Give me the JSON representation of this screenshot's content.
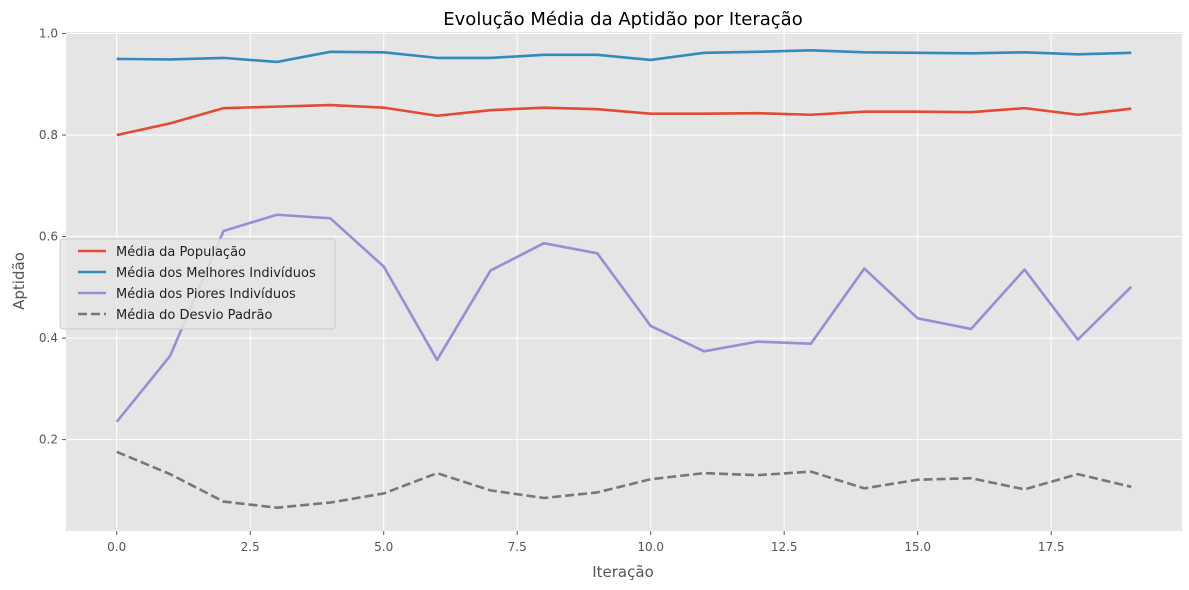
{
  "chart_data": {
    "type": "line",
    "title": "Evolução Média da Aptidão por Iteração",
    "xlabel": "Iteração",
    "ylabel": "Aptidão",
    "xlim": [
      -0.95,
      19.95
    ],
    "ylim": [
      0.02,
      1.003
    ],
    "xticks": [
      0.0,
      2.5,
      5.0,
      7.5,
      10.0,
      12.5,
      15.0,
      17.5
    ],
    "xtick_labels": [
      "0.0",
      "2.5",
      "5.0",
      "7.5",
      "10.0",
      "12.5",
      "15.0",
      "17.5"
    ],
    "yticks": [
      0.2,
      0.4,
      0.6,
      0.8,
      1.0
    ],
    "ytick_labels": [
      "0.2",
      "0.4",
      "0.6",
      "0.8",
      "1.0"
    ],
    "grid": true,
    "legend_position": "center-left",
    "background": "#e5e5e5",
    "x": [
      0,
      1,
      2,
      3,
      4,
      5,
      6,
      7,
      8,
      9,
      10,
      11,
      12,
      13,
      14,
      15,
      16,
      17,
      18,
      19
    ],
    "series": [
      {
        "name": "Média da População",
        "color": "#e24a33",
        "dash": "solid",
        "values": [
          0.8,
          0.823,
          0.853,
          0.856,
          0.859,
          0.854,
          0.838,
          0.849,
          0.854,
          0.851,
          0.842,
          0.842,
          0.843,
          0.84,
          0.846,
          0.846,
          0.845,
          0.853,
          0.84,
          0.852
        ]
      },
      {
        "name": "Média dos Melhores Indivíduos",
        "color": "#348abd",
        "dash": "solid",
        "values": [
          0.95,
          0.949,
          0.952,
          0.944,
          0.964,
          0.963,
          0.952,
          0.952,
          0.958,
          0.958,
          0.948,
          0.962,
          0.964,
          0.967,
          0.963,
          0.962,
          0.961,
          0.963,
          0.959,
          0.962
        ]
      },
      {
        "name": "Média dos Piores Indivíduos",
        "color": "#988ed5",
        "dash": "solid",
        "values": [
          0.235,
          0.365,
          0.611,
          0.643,
          0.636,
          0.541,
          0.357,
          0.533,
          0.587,
          0.567,
          0.424,
          0.374,
          0.393,
          0.389,
          0.537,
          0.439,
          0.418,
          0.535,
          0.397,
          0.501
        ]
      },
      {
        "name": "Média do Desvio Padrão",
        "color": "#777777",
        "dash": "dashed",
        "values": [
          0.176,
          0.132,
          0.078,
          0.066,
          0.076,
          0.094,
          0.134,
          0.1,
          0.085,
          0.096,
          0.122,
          0.134,
          0.13,
          0.137,
          0.104,
          0.121,
          0.124,
          0.102,
          0.132,
          0.107
        ]
      }
    ]
  }
}
